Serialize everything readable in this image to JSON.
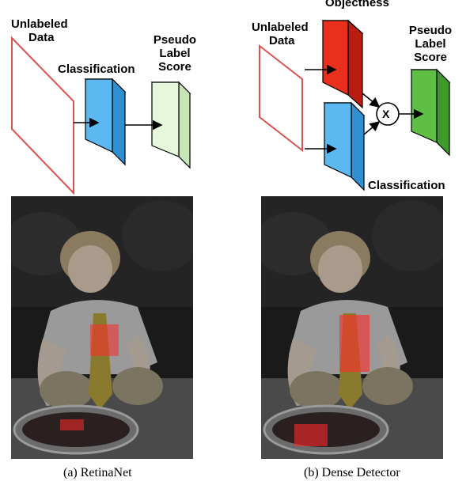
{
  "panel_a": {
    "input_label_line1": "Unlabeled",
    "input_label_line2": "Data",
    "classification_label": "Classification",
    "output_label_line1": "Pseudo",
    "output_label_line2": "Label",
    "output_label_line3": "Score",
    "caption": "(a) RetinaNet"
  },
  "panel_b": {
    "input_label_line1": "Unlabeled",
    "input_label_line2": "Data",
    "objectness_label": "Objectness",
    "classification_label": "Classification",
    "multiply_symbol": "X",
    "output_label_line1": "Pseudo",
    "output_label_line2": "Label",
    "output_label_line3": "Score",
    "caption": "(b) Dense Detector"
  },
  "colors": {
    "input_plane": "#d9534f",
    "classification_block": "#5bb8f0",
    "objectness_block": "#e8301c",
    "score_block_a": "#dff5d6",
    "score_block_b": "#5fbf45",
    "highlight": "#ff2a2a"
  }
}
